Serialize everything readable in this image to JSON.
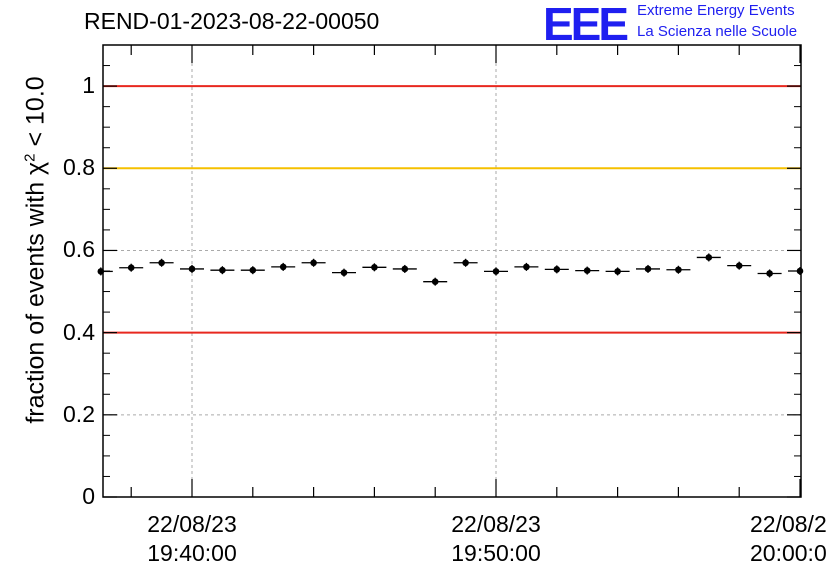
{
  "title": "REND-01-2023-08-22-00050",
  "logo": {
    "mark": "EEE",
    "line1": "Extreme Energy Events",
    "line2": "La Scienza nelle Scuole"
  },
  "chart_data": {
    "type": "scatter",
    "ylabel": "fraction of events with χ² < 10.0",
    "ylabel_parts": {
      "pre": "fraction of events with χ",
      "sup": "2",
      "post": " < 10.0"
    },
    "ylim": [
      0,
      1.1
    ],
    "yticks": [
      "0",
      "0.2",
      "0.4",
      "0.6",
      "0.8",
      "1"
    ],
    "xticks": [
      {
        "date": "22/08/23",
        "time": "19:40:00"
      },
      {
        "date": "22/08/23",
        "time": "19:50:00"
      },
      {
        "date": "22/08/2",
        "time": "20:00:0"
      }
    ],
    "grid": true,
    "reference_lines": [
      {
        "y": 1.0,
        "color": "#e8281f"
      },
      {
        "y": 0.8,
        "color": "#f5c000"
      },
      {
        "y": 0.4,
        "color": "#e8281f"
      }
    ],
    "x": [
      "19:37:00",
      "19:38:00",
      "19:39:00",
      "19:40:00",
      "19:41:00",
      "19:42:00",
      "19:43:00",
      "19:44:00",
      "19:45:00",
      "19:46:00",
      "19:47:00",
      "19:48:00",
      "19:49:00",
      "19:50:00",
      "19:51:00",
      "19:52:00",
      "19:53:00",
      "19:54:00",
      "19:55:00",
      "19:56:00",
      "19:57:00",
      "19:58:00",
      "19:59:00",
      "20:00:00"
    ],
    "values": [
      0.549,
      0.558,
      0.57,
      0.555,
      0.552,
      0.552,
      0.56,
      0.57,
      0.546,
      0.559,
      0.555,
      0.524,
      0.57,
      0.549,
      0.56,
      0.554,
      0.551,
      0.549,
      0.555,
      0.553,
      0.583,
      0.563,
      0.544,
      0.55
    ]
  }
}
